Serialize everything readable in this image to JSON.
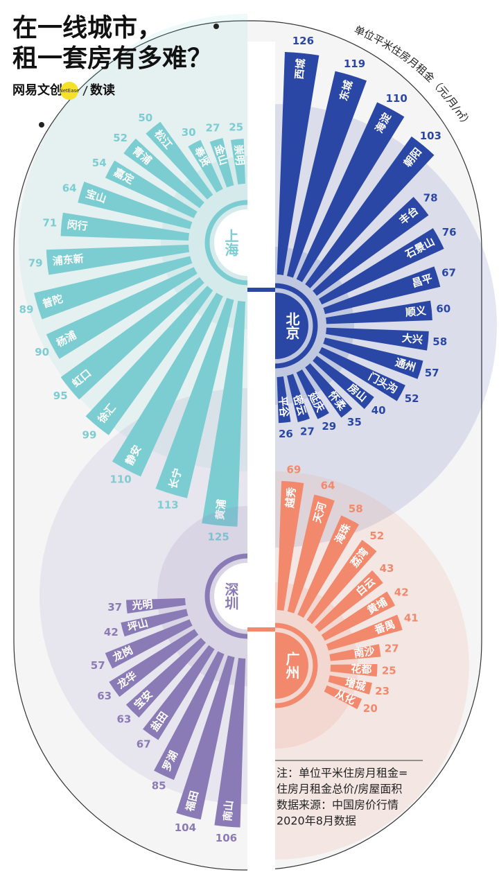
{
  "header": {
    "title": [
      "在一线城市，",
      "租一套房有多难？"
    ],
    "unit": "单位平米住房月租金（元/月/㎡）",
    "brand": "网易文创",
    "brand_badge": "NetEase",
    "column": "数读"
  },
  "note": [
    "注：单位平米住房月租金=",
    "住房月租金总价/房屋面积",
    "数据来源：中国房价行情",
    "2020年8月数据"
  ],
  "chart_data": [
    {
      "type": "radial-bar",
      "title": "上海",
      "color": "#7ccdd2",
      "categories": [
        "崇明",
        "金山",
        "奉贤",
        "松江",
        "青浦",
        "嘉定",
        "宝山",
        "闵行",
        "浦东新",
        "普陀",
        "杨浦",
        "虹口",
        "徐汇",
        "静安",
        "长宁",
        "黄浦"
      ],
      "values": [
        25,
        27,
        30,
        50,
        52,
        54,
        64,
        71,
        79,
        89,
        90,
        95,
        99,
        110,
        113,
        125
      ]
    },
    {
      "type": "radial-bar",
      "title": "北京",
      "color": "#2b47a6",
      "categories": [
        "西城",
        "东城",
        "海淀",
        "朝阳",
        "丰台",
        "石景山",
        "昌平",
        "顺义",
        "大兴",
        "通州",
        "门头沟",
        "房山",
        "怀柔",
        "延庆",
        "密云",
        "平谷"
      ],
      "values": [
        126,
        119,
        110,
        103,
        78,
        76,
        67,
        60,
        58,
        57,
        52,
        40,
        35,
        29,
        27,
        26
      ]
    },
    {
      "type": "radial-bar",
      "title": "深圳",
      "color": "#8a7bb6",
      "categories": [
        "光明",
        "坪山",
        "龙岗",
        "龙华",
        "宝安",
        "盐田",
        "罗湖",
        "福田",
        "南山"
      ],
      "values": [
        37,
        42,
        57,
        63,
        63,
        67,
        85,
        104,
        106
      ]
    },
    {
      "type": "radial-bar",
      "title": "广州",
      "color": "#f2886c",
      "categories": [
        "越秀",
        "天河",
        "海珠",
        "荔湾",
        "白云",
        "黄埔",
        "番禺",
        "南沙",
        "花都",
        "增城",
        "从化"
      ],
      "values": [
        69,
        64,
        58,
        52,
        43,
        42,
        41,
        27,
        25,
        23,
        20
      ]
    }
  ]
}
